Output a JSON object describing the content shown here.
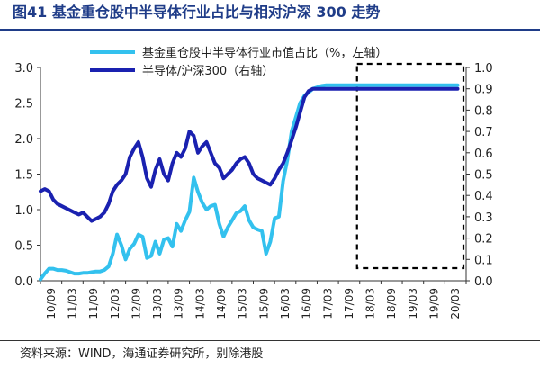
{
  "title": "图41 基金重仓股中半导体行业占比与相对沪深 300 走势",
  "source": "资料来源：WIND，海通证券研究所，别除港股",
  "chart_data": {
    "type": "line",
    "categories": [
      "10/09",
      "11/03",
      "11/09",
      "12/03",
      "12/09",
      "13/03",
      "13/09",
      "14/03",
      "14/09",
      "15/03",
      "15/09",
      "16/03",
      "16/09",
      "17/03",
      "17/09",
      "18/03",
      "18/09",
      "19/03",
      "19/09",
      "20/03"
    ],
    "x": [
      0,
      0.2,
      0.4,
      0.6,
      0.8,
      1,
      1.2,
      1.4,
      1.6,
      1.8,
      2,
      2.2,
      2.4,
      2.6,
      2.8,
      3,
      3.2,
      3.4,
      3.6,
      3.8,
      4,
      4.2,
      4.4,
      4.6,
      4.8,
      5,
      5.2,
      5.4,
      5.6,
      5.8,
      6,
      6.2,
      6.4,
      6.6,
      6.8,
      7,
      7.2,
      7.4,
      7.6,
      7.8,
      8,
      8.2,
      8.4,
      8.6,
      8.8,
      9,
      9.2,
      9.4,
      9.6,
      9.8,
      10,
      10.2,
      10.4,
      10.6,
      10.8,
      11,
      11.2,
      11.4,
      11.6,
      11.8,
      12,
      12.2,
      12.4,
      12.6,
      12.8,
      13,
      13.2,
      13.4,
      13.6,
      13.8,
      14,
      14.2,
      14.4,
      14.6,
      14.8,
      15,
      15.2,
      15.4,
      15.6,
      15.8,
      16,
      16.2,
      16.4,
      16.6,
      16.8,
      17,
      17.2,
      17.4,
      17.6,
      17.8,
      18,
      18.2,
      18.4,
      18.6,
      18.8,
      19,
      19.2,
      19.4,
      19.6,
      19.8
    ],
    "series": [
      {
        "name": "基金重仓股中半导体行业市值占比（%，左轴）",
        "axis": "left",
        "color": "#33c1ee",
        "values": [
          0.02,
          0.1,
          0.17,
          0.17,
          0.15,
          0.15,
          0.14,
          0.12,
          0.1,
          0.1,
          0.11,
          0.11,
          0.12,
          0.13,
          0.13,
          0.15,
          0.2,
          0.38,
          0.65,
          0.5,
          0.3,
          0.45,
          0.52,
          0.65,
          0.62,
          0.32,
          0.35,
          0.55,
          0.38,
          0.58,
          0.6,
          0.48,
          0.8,
          0.7,
          0.85,
          0.97,
          1.45,
          1.25,
          1.1,
          1.0,
          1.05,
          1.07,
          0.8,
          0.62,
          0.75,
          0.85,
          0.95,
          0.98,
          1.05,
          0.85,
          0.75,
          0.72,
          0.7,
          0.38,
          0.55,
          0.88,
          0.9,
          1.4,
          1.7,
          2.1,
          2.3,
          2.5,
          2.6,
          2.65,
          2.7,
          2.72,
          2.74,
          2.75,
          2.75,
          2.75,
          2.75,
          2.75,
          2.75,
          2.75,
          2.75,
          2.75,
          2.75,
          2.75,
          2.75,
          2.75,
          2.75,
          2.75,
          2.75,
          2.75,
          2.75,
          2.75,
          2.75,
          2.75,
          2.75,
          2.75,
          2.75,
          2.75,
          2.75,
          2.75,
          2.75,
          2.75,
          2.75,
          2.75,
          2.75,
          2.75
        ]
      },
      {
        "name": "半导体/沪深300（右轴）",
        "axis": "right",
        "color": "#1a21b0",
        "values": [
          0.42,
          0.43,
          0.42,
          0.38,
          0.36,
          0.35,
          0.34,
          0.33,
          0.32,
          0.31,
          0.32,
          0.3,
          0.28,
          0.29,
          0.3,
          0.32,
          0.36,
          0.42,
          0.45,
          0.47,
          0.5,
          0.58,
          0.62,
          0.65,
          0.58,
          0.48,
          0.44,
          0.52,
          0.57,
          0.5,
          0.47,
          0.55,
          0.6,
          0.58,
          0.62,
          0.7,
          0.68,
          0.6,
          0.63,
          0.65,
          0.6,
          0.55,
          0.53,
          0.48,
          0.5,
          0.52,
          0.55,
          0.57,
          0.58,
          0.55,
          0.5,
          0.48,
          0.47,
          0.46,
          0.45,
          0.48,
          0.52,
          0.55,
          0.6,
          0.66,
          0.72,
          0.79,
          0.86,
          0.89,
          0.9,
          0.9,
          0.9,
          0.9,
          0.9,
          0.9,
          0.9,
          0.9,
          0.9,
          0.9,
          0.9,
          0.9,
          0.9,
          0.9,
          0.9,
          0.9,
          0.9,
          0.9,
          0.9,
          0.9,
          0.9,
          0.9,
          0.9,
          0.9,
          0.9,
          0.9,
          0.9,
          0.9,
          0.9,
          0.9,
          0.9,
          0.9,
          0.9,
          0.9,
          0.9,
          0.9
        ]
      }
    ],
    "left_ylim": [
      0,
      3.0
    ],
    "right_ylim": [
      0,
      1.0
    ],
    "left_ticks": [
      "0.0",
      "0.5",
      "1.0",
      "1.5",
      "2.0",
      "2.5",
      "3.0"
    ],
    "right_ticks": [
      "0.0",
      "0.1",
      "0.2",
      "0.3",
      "0.4",
      "0.5",
      "0.6",
      "0.7",
      "0.8",
      "0.9",
      "1.0"
    ],
    "highlight_range": [
      "18/03",
      "20/03"
    ],
    "grid": false,
    "legend_position": "top"
  }
}
